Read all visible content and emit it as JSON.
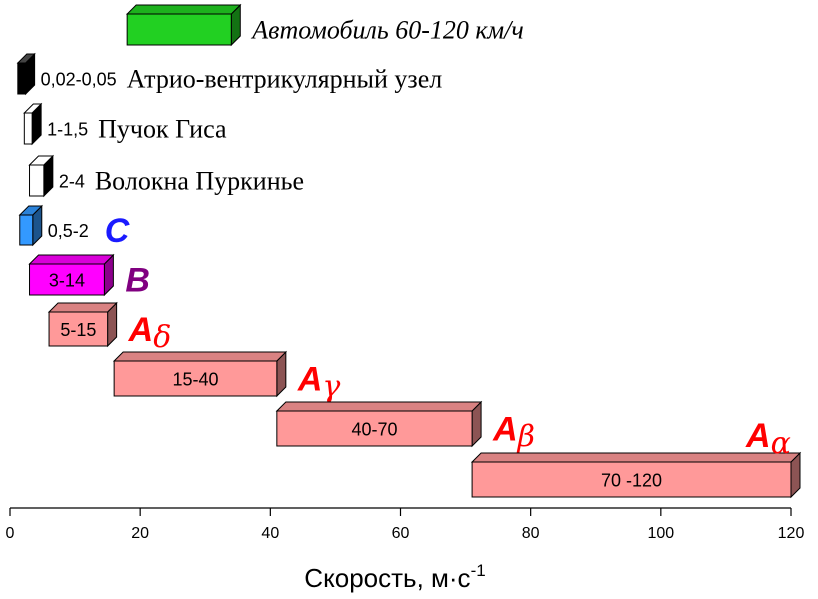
{
  "chart_data": {
    "type": "bar",
    "orientation": "horizontal",
    "xlabel": "Скорость, м·с",
    "xlabel_superscript": "-1",
    "xlim": [
      0,
      120
    ],
    "xticks": [
      "0",
      "20",
      "40",
      "60",
      "80",
      "100",
      "120"
    ],
    "grid": false,
    "legend": "none",
    "bars": [
      {
        "name": "Автомобиль 60-120 км/ч",
        "range_label": "",
        "inside_label": "",
        "start": 18,
        "end": 34,
        "color": "#22d022",
        "name_style": "italic",
        "name_color": "#000000"
      },
      {
        "name": "Атрио-вентрикулярный узел",
        "range_label": "0,02-0,05",
        "inside_label": "",
        "start": 1.2,
        "end": 2.4,
        "color": "#000000",
        "name_style": "serif",
        "name_color": "#000000"
      },
      {
        "name": "Пучок Гиса",
        "range_label": "1-1,5",
        "inside_label": "",
        "start": 2.2,
        "end": 3.4,
        "color": "#ffffff",
        "name_style": "serif",
        "name_color": "#000000"
      },
      {
        "name": "Волокна Пуркинье",
        "range_label": "2-4",
        "inside_label": "",
        "start": 3,
        "end": 5.2,
        "color": "#ffffff",
        "name_style": "serif",
        "name_color": "#000000"
      },
      {
        "name": "C",
        "subscript": "",
        "range_label": "0,5-2",
        "inside_label": "",
        "start": 1.5,
        "end": 3.5,
        "color": "#3399ff",
        "name_style": "fiber",
        "name_color": "#1a1aff"
      },
      {
        "name": "B",
        "subscript": "",
        "range_label": "",
        "inside_label": "3-14",
        "start": 3,
        "end": 14.5,
        "color": "#ff00ff",
        "name_style": "fiber",
        "name_color": "#800080"
      },
      {
        "name": "A",
        "subscript": "δ",
        "range_label": "",
        "inside_label": "5-15",
        "start": 6,
        "end": 15,
        "color": "#ff9999",
        "name_style": "fiber",
        "name_color": "#ff0000"
      },
      {
        "name": "A",
        "subscript": "γ",
        "range_label": "",
        "inside_label": "15-40",
        "start": 16,
        "end": 41,
        "color": "#ff9999",
        "name_style": "fiber",
        "name_color": "#ff0000"
      },
      {
        "name": "A",
        "subscript": "β",
        "range_label": "",
        "inside_label": "40-70",
        "start": 41,
        "end": 71,
        "color": "#ff9999",
        "name_style": "fiber",
        "name_color": "#ff0000"
      },
      {
        "name": "A",
        "subscript": "α",
        "range_label": "",
        "inside_label": "70 -120",
        "start": 71,
        "end": 120,
        "color": "#ff9999",
        "name_style": "fiber",
        "name_color": "#ff0000"
      }
    ]
  }
}
